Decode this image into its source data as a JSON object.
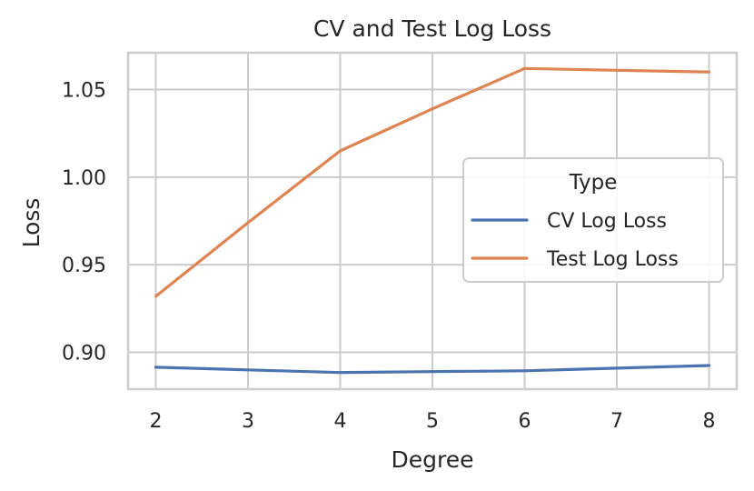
{
  "chart_data": {
    "type": "line",
    "title": "CV and Test Log Loss",
    "xlabel": "Degree",
    "ylabel": "Loss",
    "x": [
      2,
      3,
      4,
      5,
      6,
      7,
      8
    ],
    "xticks": [
      "2",
      "3",
      "4",
      "5",
      "6",
      "7",
      "8"
    ],
    "yticks": [
      "0.90",
      "0.95",
      "1.00",
      "1.05"
    ],
    "xlim": [
      1.7,
      8.3
    ],
    "ylim": [
      0.879,
      1.071
    ],
    "grid": true,
    "legend": {
      "title": "Type",
      "placement": "center-right"
    },
    "series": [
      {
        "name": "CV Log Loss",
        "color": "#4c72b0",
        "values": [
          0.8915,
          0.89,
          0.8885,
          0.889,
          0.8895,
          0.891,
          0.8925
        ]
      },
      {
        "name": "Test Log Loss",
        "color": "#dd8452",
        "values": [
          0.932,
          0.974,
          1.015,
          1.039,
          1.062,
          1.061,
          1.06
        ]
      }
    ]
  }
}
